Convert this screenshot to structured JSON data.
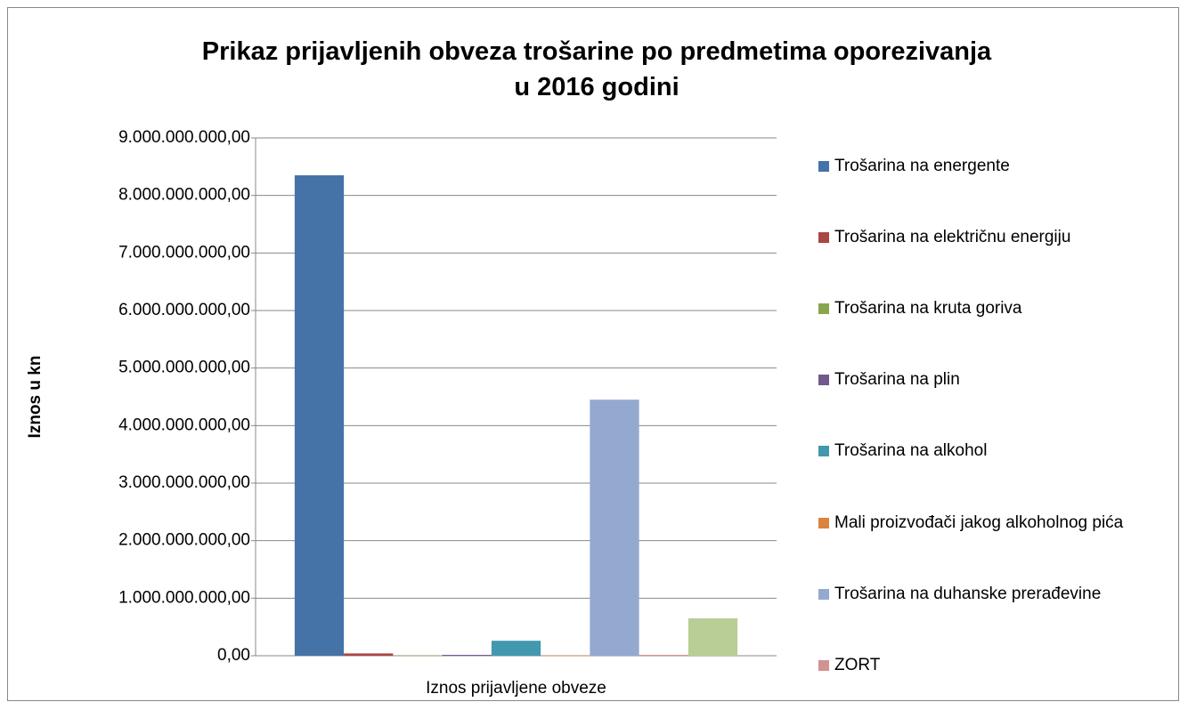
{
  "chart_data": {
    "type": "bar",
    "title": "Prikaz prijavljenih obveza trošarine po predmetima oporezivanja\nu 2016 godini",
    "y_label": "Iznos u kn",
    "categories": [
      "Iznos prijavljene obveze"
    ],
    "series": [
      {
        "name": "Trošarina na energente",
        "color": "#4572a7",
        "values": [
          8350000000
        ]
      },
      {
        "name": "Trošarina na električnu energiju",
        "color": "#aa4643",
        "values": [
          40000000
        ]
      },
      {
        "name": "Trošarina na kruta goriva",
        "color": "#89a54e",
        "values": [
          2000000
        ]
      },
      {
        "name": "Trošarina na plin",
        "color": "#71588f",
        "values": [
          15000000
        ]
      },
      {
        "name": "Trošarina na alkohol",
        "color": "#4198af",
        "values": [
          260000000
        ]
      },
      {
        "name": "Mali proizvođači jakog alkoholnog pića",
        "color": "#db843d",
        "values": [
          2000000
        ]
      },
      {
        "name": "Trošarina na duhanske prerađevine",
        "color": "#93a9cf",
        "values": [
          4450000000
        ]
      },
      {
        "name": "ZORT",
        "color": "#d19392",
        "values": [
          15000000
        ]
      },
      {
        "name": null,
        "color": "#b9cd96",
        "values": [
          650000000
        ]
      }
    ],
    "ylim": [
      0,
      9000000000
    ],
    "yticks": [
      {
        "value": 0,
        "label": "0,00"
      },
      {
        "value": 1000000000,
        "label": "1.000.000.000,00"
      },
      {
        "value": 2000000000,
        "label": "2.000.000.000,00"
      },
      {
        "value": 3000000000,
        "label": "3.000.000.000,00"
      },
      {
        "value": 4000000000,
        "label": "4.000.000.000,00"
      },
      {
        "value": 5000000000,
        "label": "5.000.000.000,00"
      },
      {
        "value": 6000000000,
        "label": "6.000.000.000,00"
      },
      {
        "value": 7000000000,
        "label": "7.000.000.000,00"
      },
      {
        "value": 8000000000,
        "label": "8.000.000.000,00"
      },
      {
        "value": 9000000000,
        "label": "9.000.000.000,00"
      }
    ],
    "grid": true,
    "legend": "right"
  }
}
